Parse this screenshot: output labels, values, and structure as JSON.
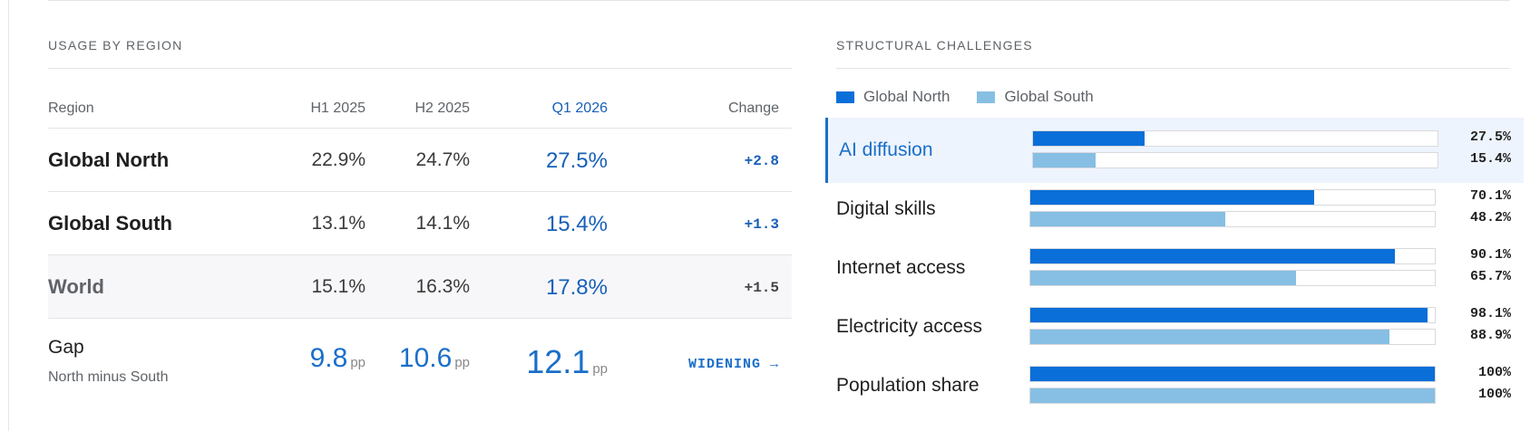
{
  "usage_panel": {
    "title": "USAGE BY REGION",
    "columns": {
      "region": "Region",
      "h1": "H1 2025",
      "h2": "H2 2025",
      "q1": "Q1 2026",
      "change": "Change"
    },
    "rows": [
      {
        "region": "Global North",
        "h1": "22.9%",
        "h2": "24.7%",
        "q1": "27.5%",
        "change": "+2.8"
      },
      {
        "region": "Global South",
        "h1": "13.1%",
        "h2": "14.1%",
        "q1": "15.4%",
        "change": "+1.3"
      },
      {
        "region": "World",
        "h1": "15.1%",
        "h2": "16.3%",
        "q1": "17.8%",
        "change": "+1.5"
      }
    ],
    "gap": {
      "label": "Gap",
      "sublabel": "North minus South",
      "h1": "9.8",
      "h2": "10.6",
      "q1": "12.1",
      "unit": "pp",
      "trend": "WIDENING →"
    }
  },
  "challenges_panel": {
    "title": "STRUCTURAL CHALLENGES",
    "legend": {
      "north": "Global North",
      "south": "Global South"
    },
    "colors": {
      "north": "#0a6fd8",
      "south": "#86bfe3",
      "accent": "#1a6fc9"
    }
  },
  "chart_data": {
    "type": "bar",
    "orientation": "horizontal",
    "title": "STRUCTURAL CHALLENGES",
    "categories": [
      "AI diffusion",
      "Digital skills",
      "Internet access",
      "Electricity access",
      "Population share"
    ],
    "highlighted_category": "AI diffusion",
    "xlim": [
      0,
      100
    ],
    "series": [
      {
        "name": "Global North",
        "values": [
          27.5,
          70.1,
          90.1,
          98.1,
          100
        ],
        "labels": [
          "27.5%",
          "70.1%",
          "90.1%",
          "98.1%",
          "100%"
        ]
      },
      {
        "name": "Global South",
        "values": [
          15.4,
          48.2,
          65.7,
          88.9,
          100
        ],
        "labels": [
          "15.4%",
          "48.2%",
          "65.7%",
          "88.9%",
          "100%"
        ]
      }
    ],
    "legend_position": "top-left",
    "grid": false
  }
}
